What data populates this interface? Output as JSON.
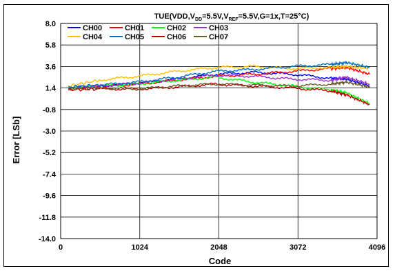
{
  "chart_data": {
    "type": "line",
    "title": {
      "prefix": "TUE(VDD,V",
      "vdd_sub": "DD",
      "mid": "=5.5V,V",
      "vref_sub": "REF",
      "suffix": "=5.5V,G=1x,T=25°C)"
    },
    "xlabel": "Code",
    "ylabel": "Error [LSb]",
    "xlim": [
      0,
      4096
    ],
    "ylim": [
      -14.0,
      8.0
    ],
    "x_ticks": [
      "0",
      "1024",
      "2048",
      "3072",
      "4096"
    ],
    "x_tick_values": [
      0,
      1024,
      2048,
      3072,
      4096
    ],
    "y_ticks": [
      "8.0",
      "5.8",
      "3.6",
      "1.4",
      "-0.8",
      "-3.0",
      "-5.2",
      "-7.4",
      "-9.6",
      "-11.8",
      "-14.0"
    ],
    "y_tick_values": [
      8.0,
      5.8,
      3.6,
      1.4,
      -0.8,
      -3.0,
      -5.2,
      -7.4,
      -9.6,
      -11.8,
      -14.0
    ],
    "grid": true,
    "legend_placement": "top-left",
    "x": [
      100,
      500,
      1000,
      1500,
      2000,
      2500,
      3000,
      3500,
      3700,
      4000
    ],
    "series": [
      {
        "name": "CH00",
        "color": "#0000ff",
        "values": [
          1.4,
          1.6,
          1.9,
          2.3,
          2.8,
          3.0,
          2.8,
          2.4,
          2.3,
          1.6
        ]
      },
      {
        "name": "CH01",
        "color": "#ff0000",
        "values": [
          1.3,
          1.5,
          1.8,
          2.2,
          2.6,
          2.8,
          3.1,
          3.4,
          3.5,
          2.8
        ]
      },
      {
        "name": "CH02",
        "color": "#00ff00",
        "values": [
          1.4,
          1.6,
          1.8,
          2.2,
          2.5,
          2.0,
          1.6,
          1.2,
          0.9,
          -0.2
        ]
      },
      {
        "name": "CH03",
        "color": "#9933cc",
        "values": [
          1.4,
          1.6,
          1.9,
          2.3,
          2.7,
          2.6,
          2.3,
          2.2,
          2.5,
          1.8
        ]
      },
      {
        "name": "CH04",
        "color": "#ffc000",
        "values": [
          1.6,
          2.2,
          2.6,
          3.1,
          3.5,
          3.6,
          3.4,
          3.5,
          3.6,
          3.4
        ]
      },
      {
        "name": "CH05",
        "color": "#0070c0",
        "values": [
          1.5,
          1.7,
          2.0,
          2.5,
          3.1,
          3.3,
          3.6,
          3.8,
          4.0,
          3.5
        ]
      },
      {
        "name": "CH06",
        "color": "#c00000",
        "values": [
          1.2,
          1.3,
          1.3,
          1.5,
          1.8,
          1.6,
          1.4,
          1.1,
          0.7,
          -0.3
        ]
      },
      {
        "name": "CH07",
        "color": "#6b5a2a",
        "values": [
          1.3,
          1.4,
          1.3,
          1.6,
          1.8,
          1.7,
          1.6,
          1.8,
          2.0,
          1.5
        ]
      }
    ]
  }
}
